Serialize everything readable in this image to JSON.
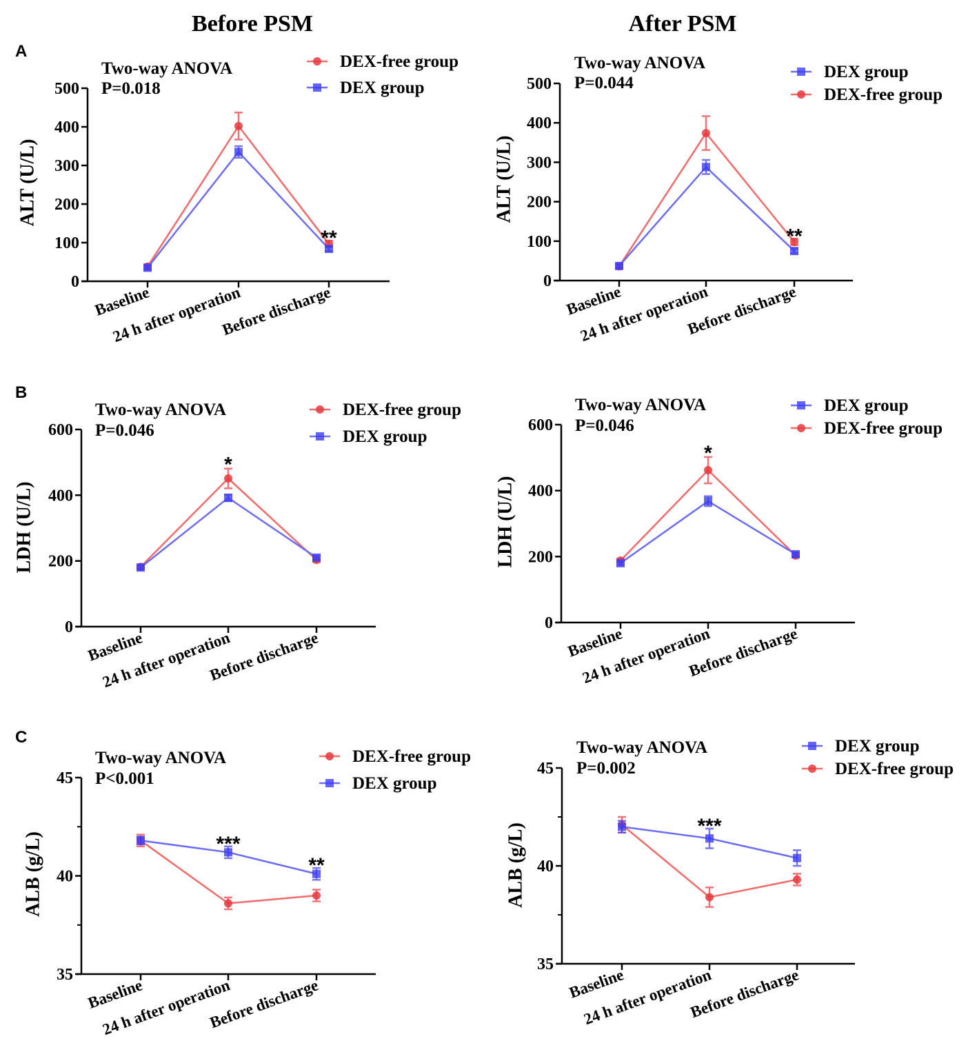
{
  "column_titles": [
    "Before PSM",
    "After PSM"
  ],
  "panel_letters": [
    "A",
    "B",
    "C"
  ],
  "colors": {
    "dex_free": "#f26a6a",
    "dex": "#6b6bf5"
  },
  "chart_data": [
    {
      "type": "line",
      "panel": "A",
      "column": "Before PSM",
      "test": "Two-way ANOVA",
      "p_value": "P=0.018",
      "ylabel": "ALT (U/L)",
      "ylim": [
        0,
        500
      ],
      "yticks": [
        0,
        100,
        200,
        300,
        400,
        500
      ],
      "minor_yticks": [],
      "categories": [
        "Baseline",
        "24 h after operation",
        "Before discharge"
      ],
      "legend": [
        "DEX-free group",
        "DEX group"
      ],
      "series": [
        {
          "name": "DEX-free group",
          "marker": "circle",
          "values": [
            38,
            402,
            97
          ],
          "errors": [
            6,
            35,
            8
          ]
        },
        {
          "name": "DEX group",
          "marker": "square",
          "values": [
            35,
            335,
            84
          ],
          "errors": [
            5,
            15,
            6
          ]
        }
      ],
      "significance": [
        {
          "category": "Before discharge",
          "label": "**"
        }
      ]
    },
    {
      "type": "line",
      "panel": "A",
      "column": "After PSM",
      "test": "Two-way ANOVA",
      "p_value": "P=0.044",
      "ylabel": "ALT (U/L)",
      "ylim": [
        0,
        500
      ],
      "yticks": [
        0,
        100,
        200,
        300,
        400,
        500
      ],
      "minor_yticks": [],
      "categories": [
        "Baseline",
        "24 h after operation",
        "Before discharge"
      ],
      "legend": [
        "DEX group",
        "DEX-free group"
      ],
      "series": [
        {
          "name": "DEX-free group",
          "marker": "circle",
          "values": [
            36,
            374,
            98
          ],
          "errors": [
            5,
            43,
            8
          ]
        },
        {
          "name": "DEX group",
          "marker": "square",
          "values": [
            37,
            288,
            75
          ],
          "errors": [
            5,
            18,
            6
          ]
        }
      ],
      "significance": [
        {
          "category": "Before discharge",
          "label": "**"
        }
      ]
    },
    {
      "type": "line",
      "panel": "B",
      "column": "Before PSM",
      "test": "Two-way ANOVA",
      "p_value": "P=0.046",
      "ylabel": "LDH (U/L)",
      "ylim": [
        0,
        600
      ],
      "yticks": [
        0,
        200,
        400,
        600
      ],
      "minor_yticks": [],
      "categories": [
        "Baseline",
        "24 h after operation",
        "Before discharge"
      ],
      "legend": [
        "DEX-free group",
        "DEX group"
      ],
      "series": [
        {
          "name": "DEX-free group",
          "marker": "circle",
          "values": [
            182,
            451,
            203
          ],
          "errors": [
            6,
            30,
            6
          ]
        },
        {
          "name": "DEX group",
          "marker": "square",
          "values": [
            180,
            392,
            210
          ],
          "errors": [
            6,
            10,
            6
          ]
        }
      ],
      "significance": [
        {
          "category": "24 h after operation",
          "label": "*"
        }
      ]
    },
    {
      "type": "line",
      "panel": "B",
      "column": "After PSM",
      "test": "Two-way ANOVA",
      "p_value": "P=0.046",
      "ylabel": "LDH (U/L)",
      "ylim": [
        0,
        600
      ],
      "yticks": [
        0,
        200,
        400,
        600
      ],
      "minor_yticks": [],
      "categories": [
        "Baseline",
        "24 h after operation",
        "Before discharge"
      ],
      "legend": [
        "DEX group",
        "DEX-free group"
      ],
      "series": [
        {
          "name": "DEX-free group",
          "marker": "circle",
          "values": [
            188,
            462,
            203
          ],
          "errors": [
            6,
            40,
            6
          ]
        },
        {
          "name": "DEX group",
          "marker": "square",
          "values": [
            180,
            368,
            207
          ],
          "errors": [
            6,
            15,
            6
          ]
        }
      ],
      "significance": [
        {
          "category": "24 h after operation",
          "label": "*"
        }
      ]
    },
    {
      "type": "line",
      "panel": "C",
      "column": "Before PSM",
      "test": "Two-way ANOVA",
      "p_value": "P<0.001",
      "ylabel": "ALB (g/L)",
      "ylim": [
        35,
        45
      ],
      "yticks": [
        35,
        40,
        45
      ],
      "minor_yticks": [
        37.5,
        42.5
      ],
      "categories": [
        "Baseline",
        "24 h after operation",
        "Before discharge"
      ],
      "legend": [
        "DEX-free group",
        "DEX group"
      ],
      "series": [
        {
          "name": "DEX-free group",
          "marker": "circle",
          "values": [
            41.8,
            38.6,
            39.0
          ],
          "errors": [
            0.3,
            0.3,
            0.3
          ]
        },
        {
          "name": "DEX group",
          "marker": "square",
          "values": [
            41.8,
            41.2,
            40.1
          ],
          "errors": [
            0.2,
            0.3,
            0.3
          ]
        }
      ],
      "significance": [
        {
          "category": "24 h after operation",
          "label": "***"
        },
        {
          "category": "Before discharge",
          "label": "**"
        }
      ]
    },
    {
      "type": "line",
      "panel": "C",
      "column": "After PSM",
      "test": "Two-way ANOVA",
      "p_value": "P=0.002",
      "ylabel": "ALB (g/L)",
      "ylim": [
        35,
        45
      ],
      "yticks": [
        35,
        40,
        45
      ],
      "minor_yticks": [
        37.5,
        42.5
      ],
      "categories": [
        "Baseline",
        "24 h after operation",
        "Before discharge"
      ],
      "legend": [
        "DEX group",
        "DEX-free group"
      ],
      "series": [
        {
          "name": "DEX-free group",
          "marker": "circle",
          "values": [
            42.1,
            38.4,
            39.3
          ],
          "errors": [
            0.4,
            0.5,
            0.3
          ]
        },
        {
          "name": "DEX group",
          "marker": "square",
          "values": [
            42.0,
            41.4,
            40.4
          ],
          "errors": [
            0.3,
            0.5,
            0.4
          ]
        }
      ],
      "significance": [
        {
          "category": "24 h after operation",
          "label": "***"
        }
      ]
    }
  ]
}
